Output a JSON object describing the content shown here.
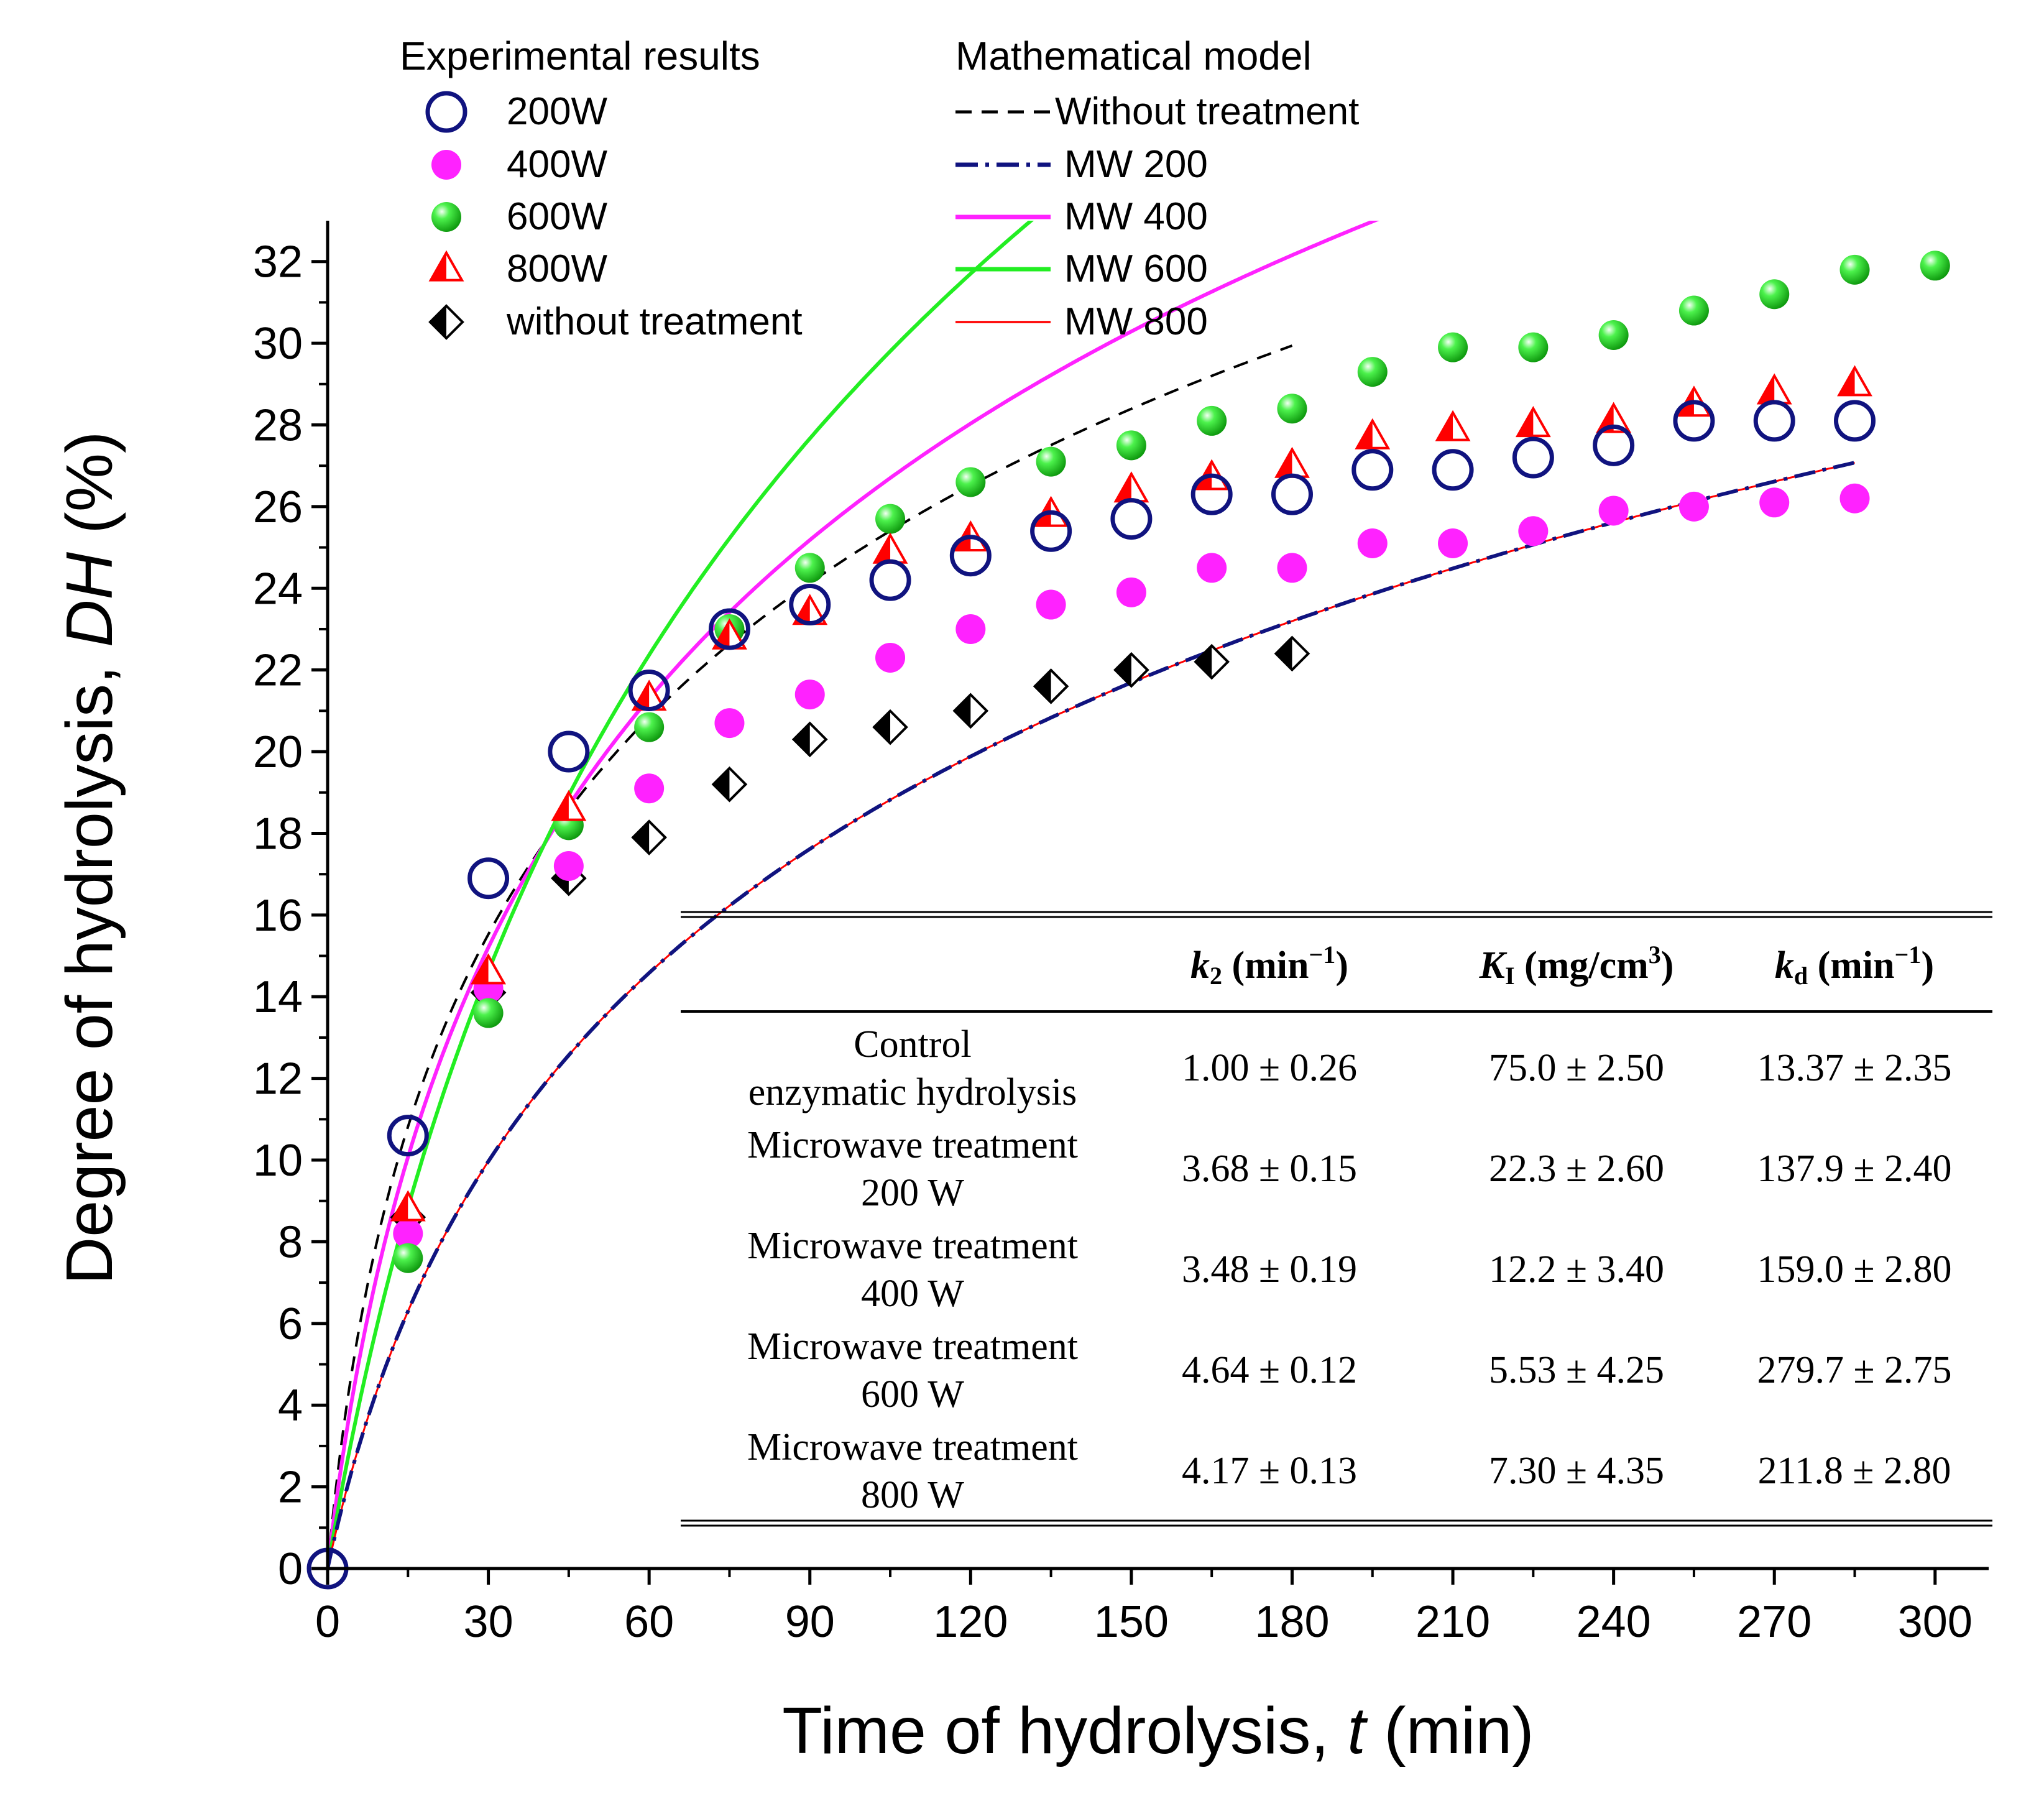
{
  "chart_data": {
    "type": "scatter",
    "title": "",
    "xlabel": "Time of hydrolysis, t (min)",
    "xlabel_parts": {
      "pre": "Time of hydrolysis, ",
      "var": "t",
      "post": " (min)"
    },
    "ylabel": "Degree of hydrolysis, DH (%)",
    "ylabel_parts": {
      "pre": "Degree of hydrolysis, ",
      "var": "DH",
      "post": " (%)"
    },
    "xlim": [
      0,
      310
    ],
    "ylim": [
      0,
      33
    ],
    "x_ticks": [
      0,
      30,
      60,
      90,
      120,
      150,
      180,
      210,
      240,
      270,
      300
    ],
    "y_ticks": [
      0,
      2,
      4,
      6,
      8,
      10,
      12,
      14,
      16,
      18,
      20,
      22,
      24,
      26,
      28,
      30,
      32
    ],
    "legend_experimental": {
      "title": "Experimental results",
      "entries": [
        "200W",
        "400W",
        "600W",
        "800W",
        "without treatment"
      ]
    },
    "legend_model": {
      "title": "Mathematical model",
      "entries": [
        "Without treatment",
        "MW 200",
        "MW 400",
        "MW 600",
        "MW 800"
      ]
    },
    "colors": {
      "w200": "#10137f",
      "w400": "#ff22ff",
      "w600": "#22ee22",
      "w800": "#ff0000",
      "control": "#000000"
    },
    "experimental_series": [
      {
        "name": "200W",
        "marker": "open-circle",
        "x": [
          0,
          15,
          30,
          45,
          60,
          75,
          90,
          105,
          120,
          135,
          150,
          165,
          180,
          195,
          210,
          225,
          240,
          255,
          270,
          285
        ],
        "y": [
          0,
          10.6,
          16.9,
          20.0,
          21.5,
          23.0,
          23.6,
          24.2,
          24.8,
          25.4,
          25.7,
          26.3,
          26.3,
          26.9,
          26.9,
          27.2,
          27.5,
          28.1,
          28.1,
          28.1
        ]
      },
      {
        "name": "400W",
        "marker": "filled-circle",
        "x": [
          15,
          30,
          45,
          60,
          75,
          90,
          105,
          120,
          135,
          150,
          165,
          180,
          195,
          210,
          225,
          240,
          255,
          270,
          285
        ],
        "y": [
          8.2,
          14.2,
          17.2,
          19.1,
          20.7,
          21.4,
          22.3,
          23.0,
          23.6,
          23.9,
          24.5,
          24.5,
          25.1,
          25.1,
          25.4,
          25.9,
          26.0,
          26.1,
          26.2
        ]
      },
      {
        "name": "600W",
        "marker": "ball",
        "x": [
          15,
          30,
          45,
          60,
          75,
          90,
          105,
          120,
          135,
          150,
          165,
          180,
          195,
          210,
          225,
          240,
          255,
          270,
          285,
          300
        ],
        "y": [
          7.6,
          13.6,
          18.2,
          20.6,
          23.0,
          24.5,
          25.7,
          26.6,
          27.1,
          27.5,
          28.1,
          28.4,
          29.3,
          29.9,
          29.9,
          30.2,
          30.8,
          31.2,
          31.8,
          31.9
        ]
      },
      {
        "name": "800W",
        "marker": "half-triangle",
        "x": [
          15,
          30,
          45,
          60,
          75,
          90,
          105,
          120,
          135,
          150,
          165,
          180,
          195,
          210,
          225,
          240,
          255,
          270,
          285
        ],
        "y": [
          8.8,
          14.6,
          18.6,
          21.3,
          22.8,
          23.4,
          24.9,
          25.2,
          25.8,
          26.4,
          26.7,
          27.0,
          27.7,
          27.9,
          28.0,
          28.1,
          28.5,
          28.8,
          29.0
        ]
      },
      {
        "name": "without treatment",
        "marker": "half-diamond",
        "x": [
          15,
          30,
          45,
          60,
          75,
          90,
          105,
          120,
          135,
          150,
          165,
          180
        ],
        "y": [
          8.6,
          14.1,
          16.9,
          17.9,
          19.2,
          20.3,
          20.6,
          21.0,
          21.6,
          22.0,
          22.2,
          22.4
        ]
      }
    ],
    "model_series": [
      {
        "name": "Without treatment",
        "style": "dashed",
        "t_max": 180,
        "a": 6.2,
        "b": 8.8
      },
      {
        "name": "MW 200",
        "style": "dash-dot",
        "t_max": 285,
        "a": 14.8,
        "b": 9.0
      },
      {
        "name": "MW 400",
        "style": "solid",
        "t_max": 285,
        "a": 9.8,
        "b": 10.85
      },
      {
        "name": "MW 600",
        "style": "solid",
        "t_max": 310,
        "a": 22.0,
        "b": 17.0
      },
      {
        "name": "MW 800",
        "style": "thin-solid",
        "t_max": 285,
        "a": 14.8,
        "b": 9.0
      }
    ],
    "model_formula": "DH = b * ln(1 + t / a)",
    "inset_table": {
      "headers": {
        "k2": {
          "sym": "k",
          "sub": "2",
          "unit": " (min",
          "sup": "−1",
          "close": ")"
        },
        "K1": {
          "sym": "K",
          "sub": "I",
          "unit": " (mg/cm",
          "sup": "3",
          "close": ")"
        },
        "kd": {
          "sym": "k",
          "sub": "d",
          "unit": " (min",
          "sup": "−1",
          "close": ")"
        }
      },
      "rows": [
        {
          "label1": "Control",
          "label2": "enzymatic hydrolysis",
          "k2": "1.00 ± 0.26",
          "K1": "75.0 ± 2.50",
          "kd": "13.37 ± 2.35"
        },
        {
          "label1": "Microwave treatment",
          "label2": "200 W",
          "k2": "3.68 ± 0.15",
          "K1": "22.3 ± 2.60",
          "kd": "137.9 ± 2.40"
        },
        {
          "label1": "Microwave treatment",
          "label2": "400 W",
          "k2": "3.48 ± 0.19",
          "K1": "12.2 ± 3.40",
          "kd": "159.0 ± 2.80"
        },
        {
          "label1": "Microwave treatment",
          "label2": "600 W",
          "k2": "4.64 ± 0.12",
          "K1": "5.53 ± 4.25",
          "kd": "279.7 ± 2.75"
        },
        {
          "label1": "Microwave treatment",
          "label2": "800 W",
          "k2": "4.17 ± 0.13",
          "K1": "7.30 ± 4.35",
          "kd": "211.8 ± 2.80"
        }
      ]
    }
  }
}
